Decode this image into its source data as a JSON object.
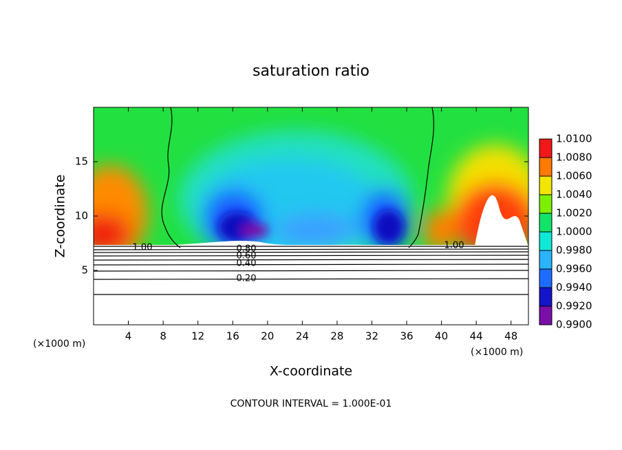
{
  "chart_data": {
    "type": "contour",
    "title": "saturation ratio",
    "x_label": "X-coordinate",
    "y_label": "Z-coordinate",
    "x_unit_left": "(×1000 m)",
    "x_unit_right": "(×1000 m)",
    "xlim": [
      0,
      50
    ],
    "ylim": [
      0,
      20
    ],
    "xticks": [
      4,
      8,
      12,
      16,
      20,
      24,
      28,
      32,
      36,
      40,
      44,
      48
    ],
    "yticks": [
      5,
      10,
      15
    ],
    "contour_labels": [
      "1.00",
      "1.00",
      "0.80",
      "0.60",
      "0.40",
      "0.20"
    ],
    "footer": "CONTOUR INTERVAL = 1.000E-01",
    "colorbar": {
      "ticks": [
        {
          "value": 0.99,
          "label": "0.9900"
        },
        {
          "value": 0.992,
          "label": "0.9920"
        },
        {
          "value": 0.994,
          "label": "0.9940"
        },
        {
          "value": 0.996,
          "label": "0.9960"
        },
        {
          "value": 0.998,
          "label": "0.9980"
        },
        {
          "value": 1.0,
          "label": "1.0000"
        },
        {
          "value": 1.002,
          "label": "1.0020"
        },
        {
          "value": 1.004,
          "label": "1.0040"
        },
        {
          "value": 1.006,
          "label": "1.0060"
        },
        {
          "value": 1.008,
          "label": "1.0080"
        },
        {
          "value": 1.01,
          "label": "1.0100"
        }
      ],
      "colors": [
        "#7a0fa8",
        "#1414c8",
        "#1e6cff",
        "#2ab4ff",
        "#10e8d8",
        "#12e46a",
        "#7cf000",
        "#f2e600",
        "#ff7a00",
        "#f01818"
      ]
    }
  }
}
